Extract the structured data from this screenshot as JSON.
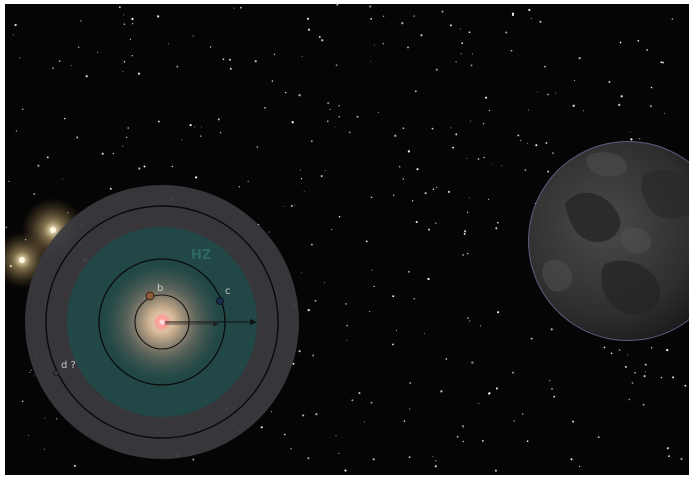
{
  "scene": {
    "planet_labels": {
      "b": "b",
      "c": "c",
      "d": "d ?"
    },
    "zone_label": "HZ",
    "colors": {
      "space": "#050505",
      "outer_disk": "#3a3a3f",
      "habitable_zone": "#1f4a48",
      "star_glow": "#f2c7a0",
      "orbit_line": "#0a0a0a",
      "planet_rim": "#b49ce8",
      "planet_surface": "#3c3c3c"
    }
  }
}
